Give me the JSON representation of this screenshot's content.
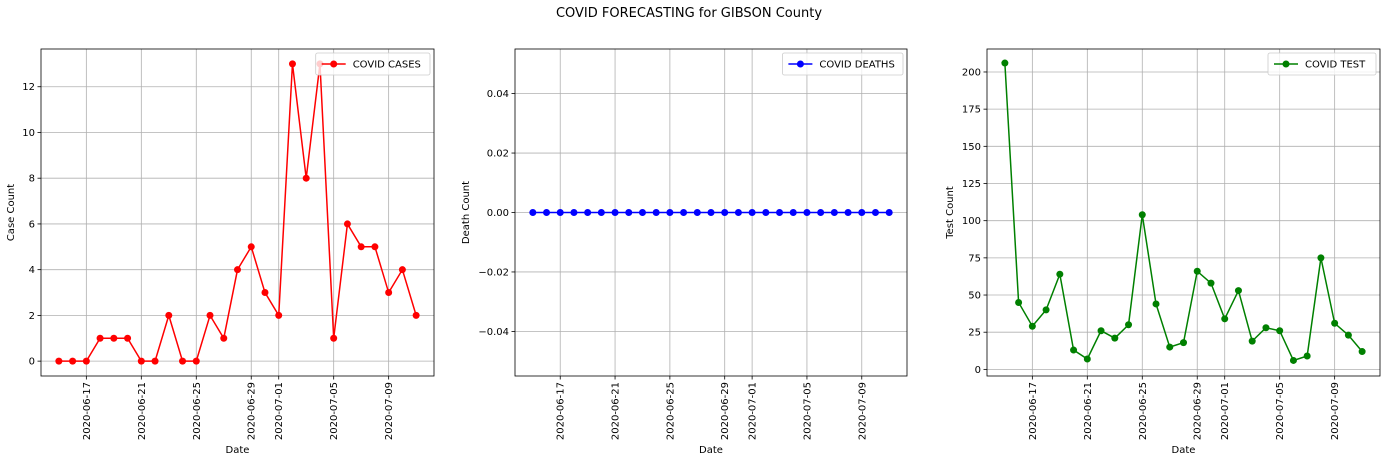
{
  "suptitle": "COVID FORECASTING for GIBSON County",
  "x_dates": [
    "2020-06-15",
    "2020-06-16",
    "2020-06-17",
    "2020-06-18",
    "2020-06-19",
    "2020-06-20",
    "2020-06-21",
    "2020-06-22",
    "2020-06-23",
    "2020-06-24",
    "2020-06-25",
    "2020-06-26",
    "2020-06-27",
    "2020-06-28",
    "2020-06-29",
    "2020-06-30",
    "2020-07-01",
    "2020-07-02",
    "2020-07-03",
    "2020-07-04",
    "2020-07-05",
    "2020-07-06",
    "2020-07-07",
    "2020-07-08",
    "2020-07-09",
    "2020-07-10",
    "2020-07-11"
  ],
  "chart_data": [
    {
      "type": "line",
      "xlabel": "Date",
      "ylabel": "Case Count",
      "color": "#ff0000",
      "legend_position": "top-right",
      "grid": true,
      "ylim": [
        -0.65,
        13.65
      ],
      "yticks": [
        0,
        2,
        4,
        6,
        8,
        10,
        12
      ],
      "ytick_labels": [
        "0",
        "2",
        "4",
        "6",
        "8",
        "10",
        "12"
      ],
      "xticks": [
        "2020-06-17",
        "2020-06-21",
        "2020-06-25",
        "2020-06-29",
        "2020-07-01",
        "2020-07-05",
        "2020-07-09"
      ],
      "series": [
        {
          "name": "COVID CASES",
          "values": [
            0,
            0,
            0,
            1,
            1,
            1,
            0,
            0,
            2,
            0,
            0,
            2,
            1,
            4,
            5,
            3,
            2,
            13,
            8,
            13,
            1,
            6,
            5,
            5,
            3,
            4,
            2
          ]
        }
      ]
    },
    {
      "type": "line",
      "xlabel": "Date",
      "ylabel": "Death Count",
      "color": "#0000ff",
      "legend_position": "top-right",
      "grid": true,
      "ylim": [
        -0.055,
        0.055
      ],
      "yticks": [
        -0.04,
        -0.02,
        0,
        0.02,
        0.04
      ],
      "ytick_labels": [
        "−0.04",
        "−0.02",
        "0.00",
        "0.02",
        "0.04"
      ],
      "xticks": [
        "2020-06-17",
        "2020-06-21",
        "2020-06-25",
        "2020-06-29",
        "2020-07-01",
        "2020-07-05",
        "2020-07-09"
      ],
      "series": [
        {
          "name": "COVID DEATHS",
          "values": [
            0,
            0,
            0,
            0,
            0,
            0,
            0,
            0,
            0,
            0,
            0,
            0,
            0,
            0,
            0,
            0,
            0,
            0,
            0,
            0,
            0,
            0,
            0,
            0,
            0,
            0,
            0
          ]
        }
      ]
    },
    {
      "type": "line",
      "xlabel": "Date",
      "ylabel": "Test Count",
      "color": "#008000",
      "legend_position": "top-right",
      "grid": true,
      "ylim": [
        -4.45,
        215.45
      ],
      "yticks": [
        0,
        25,
        50,
        75,
        100,
        125,
        150,
        175,
        200
      ],
      "ytick_labels": [
        "0",
        "25",
        "50",
        "75",
        "100",
        "125",
        "150",
        "175",
        "200"
      ],
      "xticks": [
        "2020-06-17",
        "2020-06-21",
        "2020-06-25",
        "2020-06-29",
        "2020-07-01",
        "2020-07-05",
        "2020-07-09"
      ],
      "series": [
        {
          "name": "COVID TEST",
          "values": [
            206,
            45,
            29,
            40,
            64,
            13,
            7,
            26,
            21,
            30,
            104,
            44,
            15,
            18,
            66,
            58,
            34,
            53,
            19,
            28,
            26,
            6,
            9,
            75,
            31,
            23,
            12
          ]
        }
      ]
    }
  ]
}
